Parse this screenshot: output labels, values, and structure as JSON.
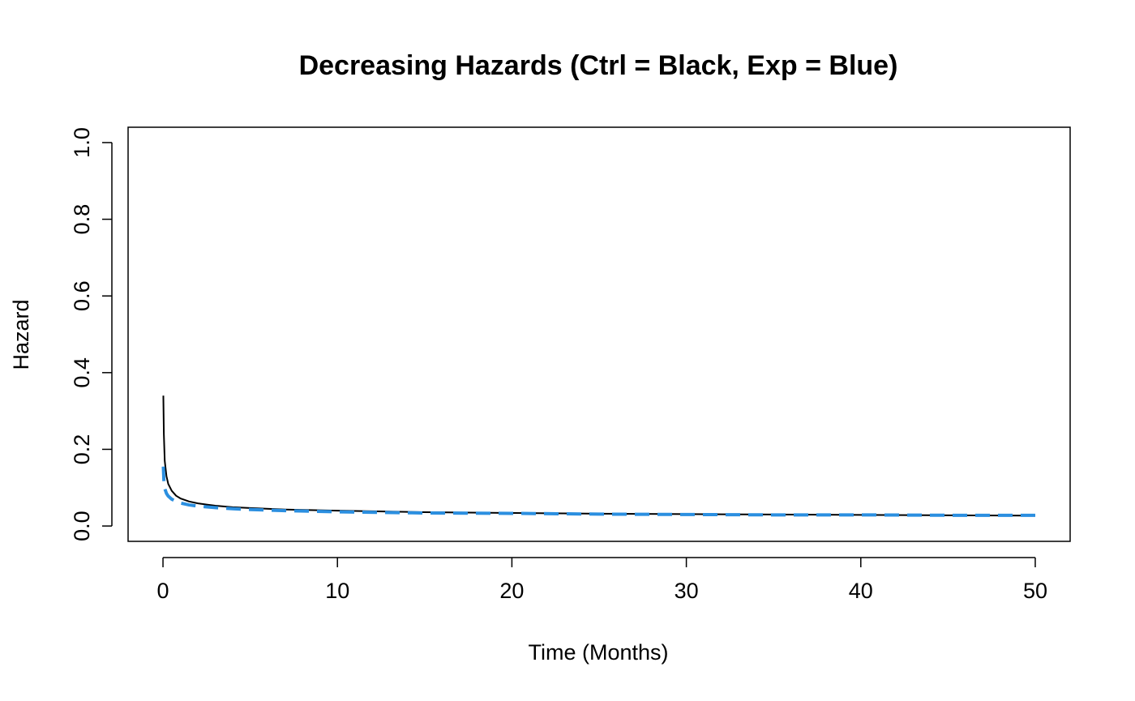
{
  "chart_data": {
    "type": "line",
    "title": "Decreasing Hazards (Ctrl = Black, Exp = Blue)",
    "xlabel": "Time (Months)",
    "ylabel": "Hazard",
    "xlim": [
      -2,
      52
    ],
    "ylim": [
      -0.04,
      1.04
    ],
    "xticks": [
      0,
      10,
      20,
      30,
      40,
      50
    ],
    "yticks": [
      0.0,
      0.2,
      0.4,
      0.6,
      0.8,
      1.0
    ],
    "xtick_labels": [
      "0",
      "10",
      "20",
      "30",
      "40",
      "50"
    ],
    "ytick_labels": [
      "0.0",
      "0.2",
      "0.4",
      "0.6",
      "0.8",
      "1.0"
    ],
    "grid": false,
    "series": [
      {
        "color": "#000000",
        "line_style": "solid",
        "x": [
          0.02,
          0.05,
          0.1,
          0.2,
          0.3,
          0.5,
          0.75,
          1,
          1.5,
          2,
          3,
          4,
          5,
          7,
          10,
          15,
          20,
          25,
          30,
          35,
          40,
          45,
          50
        ],
        "y": [
          0.34,
          0.24,
          0.17,
          0.13,
          0.11,
          0.092,
          0.079,
          0.072,
          0.064,
          0.059,
          0.053,
          0.049,
          0.047,
          0.043,
          0.04,
          0.036,
          0.034,
          0.032,
          0.031,
          0.03,
          0.029,
          0.028,
          0.027
        ]
      },
      {
        "color": "#2b8fe0",
        "line_style": "dashed",
        "x": [
          0.02,
          0.05,
          0.1,
          0.2,
          0.3,
          0.5,
          0.75,
          1,
          1.5,
          2,
          3,
          4,
          5,
          7,
          10,
          15,
          20,
          25,
          30,
          35,
          40,
          45,
          50
        ],
        "y": [
          0.155,
          0.12,
          0.098,
          0.085,
          0.078,
          0.07,
          0.064,
          0.06,
          0.055,
          0.052,
          0.048,
          0.045,
          0.043,
          0.04,
          0.037,
          0.034,
          0.033,
          0.031,
          0.03,
          0.029,
          0.029,
          0.028,
          0.028
        ]
      }
    ]
  }
}
